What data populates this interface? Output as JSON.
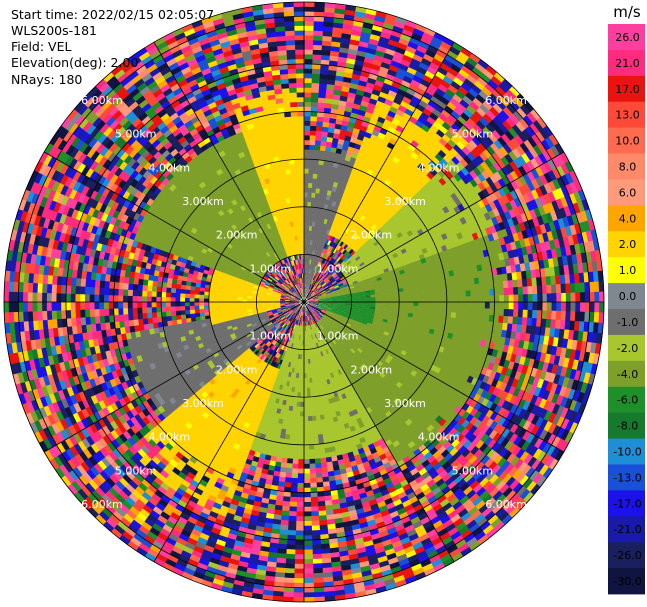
{
  "header": {
    "start_time": "Start time: 2022/02/15 02:05:07",
    "instrument": "WLS200s-181",
    "field": "Field: VEL",
    "elevation": "Elevation(deg): 2.00",
    "nrays": "NRays: 180"
  },
  "chart_data": {
    "type": "heatmap",
    "projection": "polar-ppi",
    "field": "VEL",
    "n_rays": 180,
    "elevation_deg": 2.0,
    "range_rings_km": [
      1.0,
      2.0,
      3.0,
      4.0,
      5.0,
      6.0
    ],
    "range_ring_labels": [
      "1.00km",
      "2.00km",
      "3.00km",
      "4.00km",
      "5.00km",
      "6.00km"
    ],
    "max_range_km": 6.3,
    "spoke_angles_deg": [
      0,
      30,
      60,
      90,
      120,
      150,
      180,
      210,
      240,
      270,
      300,
      330
    ],
    "colorbar": {
      "unit": "m/s",
      "ticks": [
        "26.0",
        "21.0",
        "17.0",
        "13.0",
        "10.0",
        "8.0",
        "6.0",
        "4.0",
        "2.0",
        "1.0",
        "0.0",
        "-1.0",
        "-2.0",
        "-4.0",
        "-6.0",
        "-8.0",
        "-10.0",
        "-13.0",
        "-17.0",
        "-21.0",
        "-26.0",
        "-30.0"
      ],
      "bins": [
        {
          "min": 26,
          "max": 30,
          "color": "#ff3fa0"
        },
        {
          "min": 21,
          "max": 26,
          "color": "#ff2b7f"
        },
        {
          "min": 17,
          "max": 21,
          "color": "#e8140f"
        },
        {
          "min": 13,
          "max": 17,
          "color": "#ff4a3a"
        },
        {
          "min": 10,
          "max": 13,
          "color": "#ff6b4f"
        },
        {
          "min": 8,
          "max": 10,
          "color": "#ff8a6a"
        },
        {
          "min": 6,
          "max": 8,
          "color": "#ff9a7a"
        },
        {
          "min": 4,
          "max": 6,
          "color": "#ffa500"
        },
        {
          "min": 2,
          "max": 4,
          "color": "#ffd400"
        },
        {
          "min": 1,
          "max": 2,
          "color": "#ffff00"
        },
        {
          "min": 0,
          "max": 1,
          "color": "#7f8790"
        },
        {
          "min": -1,
          "max": 0,
          "color": "#6e6e6e"
        },
        {
          "min": -2,
          "max": -1,
          "color": "#a8c62d"
        },
        {
          "min": -4,
          "max": -2,
          "color": "#7ea02a"
        },
        {
          "min": -6,
          "max": -4,
          "color": "#1f8f2a"
        },
        {
          "min": -8,
          "max": -6,
          "color": "#157a2d"
        },
        {
          "min": -10,
          "max": -8,
          "color": "#1e8fd6"
        },
        {
          "min": -13,
          "max": -10,
          "color": "#1a4fd8"
        },
        {
          "min": -17,
          "max": -13,
          "color": "#1a12e8"
        },
        {
          "min": -21,
          "max": -17,
          "color": "#1a1aa8"
        },
        {
          "min": -26,
          "max": -21,
          "color": "#1a1f5e"
        },
        {
          "min": -30,
          "max": -26,
          "color": "#0f1440"
        }
      ]
    },
    "sectors": [
      {
        "az_from": 0,
        "az_to": 20,
        "range_from": 0,
        "range_to": 3.2,
        "value": -0.5
      },
      {
        "az_from": 20,
        "az_to": 45,
        "range_from": 1.5,
        "range_to": 4.8,
        "value": 2.5
      },
      {
        "az_from": 45,
        "az_to": 70,
        "range_from": 1.0,
        "range_to": 4.3,
        "value": -1.5
      },
      {
        "az_from": 70,
        "az_to": 110,
        "range_from": 0.3,
        "range_to": 4.3,
        "value": -3.0
      },
      {
        "az_from": 80,
        "az_to": 110,
        "range_from": 0.3,
        "range_to": 1.5,
        "value": -5.0
      },
      {
        "az_from": 110,
        "az_to": 150,
        "range_from": 0.5,
        "range_to": 4.0,
        "value": -2.5
      },
      {
        "az_from": 150,
        "az_to": 200,
        "range_from": 0.5,
        "range_to": 3.3,
        "value": -1.5
      },
      {
        "az_from": 200,
        "az_to": 230,
        "range_from": 1.5,
        "range_to": 4.8,
        "value": 3.0
      },
      {
        "az_from": 230,
        "az_to": 260,
        "range_from": 0.8,
        "range_to": 3.8,
        "value": -0.5
      },
      {
        "az_from": 255,
        "az_to": 290,
        "range_from": 0.5,
        "range_to": 2.0,
        "value": 2.5
      },
      {
        "az_from": 290,
        "az_to": 340,
        "range_from": 1.0,
        "range_to": 3.8,
        "value": -2.5
      },
      {
        "az_from": 340,
        "az_to": 360,
        "range_from": 1.0,
        "range_to": 4.5,
        "value": 3.0
      }
    ]
  }
}
